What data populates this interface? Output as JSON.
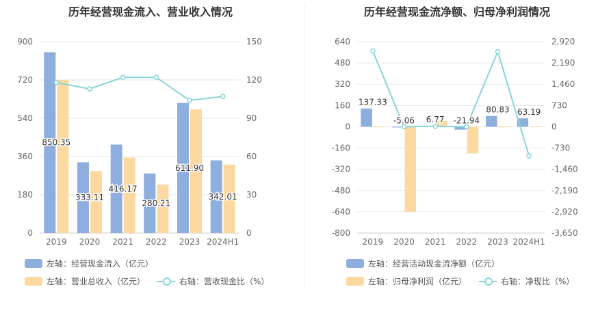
{
  "chart_data": [
    {
      "type": "bar",
      "title": "历年经营现金流入、营业收入情况",
      "categories": [
        "2019",
        "2020",
        "2021",
        "2022",
        "2023",
        "2024H1"
      ],
      "left_axis": {
        "min": 0,
        "max": 900,
        "ticks": [
          "900",
          "720",
          "540",
          "360",
          "180",
          "0"
        ]
      },
      "right_axis": {
        "min": 0,
        "max": 150,
        "ticks": [
          "150",
          "120",
          "90",
          "60",
          "30",
          "0"
        ]
      },
      "series": [
        {
          "name": "左轴：经营现金流入（亿元）",
          "kind": "bar",
          "axis": "left",
          "color": "#8eaedd",
          "values": [
            850.35,
            333.11,
            416.17,
            280.21,
            611.9,
            342.01
          ],
          "labels": [
            "850.35",
            "333.11",
            "416.17",
            "280.21",
            "611.90",
            "342.01"
          ]
        },
        {
          "name": "左轴：营业总收入（亿元）",
          "kind": "bar",
          "axis": "left",
          "color": "#fcd9a1",
          "values": [
            720,
            292,
            355,
            228,
            582,
            322
          ]
        },
        {
          "name": "右轴：营收现金比（%）",
          "kind": "line",
          "axis": "right",
          "color": "#86d5d8",
          "values": [
            118,
            113,
            122,
            122,
            104,
            107
          ]
        }
      ],
      "grid": true,
      "legend_position": "bottom"
    },
    {
      "type": "bar",
      "title": "历年经营现金流净额、归母净利润情况",
      "categories": [
        "2019",
        "2020",
        "2021",
        "2022",
        "2023",
        "2024H1"
      ],
      "left_axis": {
        "min": -800,
        "max": 640,
        "ticks": [
          "640",
          "480",
          "320",
          "160",
          "0",
          "-160",
          "-320",
          "-480",
          "-640",
          "-800"
        ]
      },
      "right_axis": {
        "min": -3650,
        "max": 2920,
        "ticks": [
          "2,920",
          "2,190",
          "1,460",
          "730",
          "0",
          "-730",
          "-1,460",
          "-2,190",
          "-2,920",
          "-3,650"
        ]
      },
      "series": [
        {
          "name": "左轴：经营活动现金流净额（亿元）",
          "kind": "bar",
          "axis": "left",
          "color": "#8eaedd",
          "values": [
            137.33,
            -5.06,
            6.77,
            -21.94,
            80.83,
            63.19
          ],
          "labels": [
            "137.33",
            "-5.06",
            "6.77",
            "-21.94",
            "80.83",
            "63.19"
          ]
        },
        {
          "name": "左轴：归母净利润（亿元）",
          "kind": "bar",
          "axis": "left",
          "color": "#fcd9a1",
          "values": [
            1.5,
            -640,
            45,
            -200,
            1.0,
            1.0
          ]
        },
        {
          "name": "右轴：净现比（%）",
          "kind": "line",
          "axis": "right",
          "color": "#86d5d8",
          "values": [
            2600,
            0,
            15,
            0,
            2580,
            -1000
          ]
        }
      ],
      "grid": true,
      "legend_position": "bottom"
    }
  ]
}
